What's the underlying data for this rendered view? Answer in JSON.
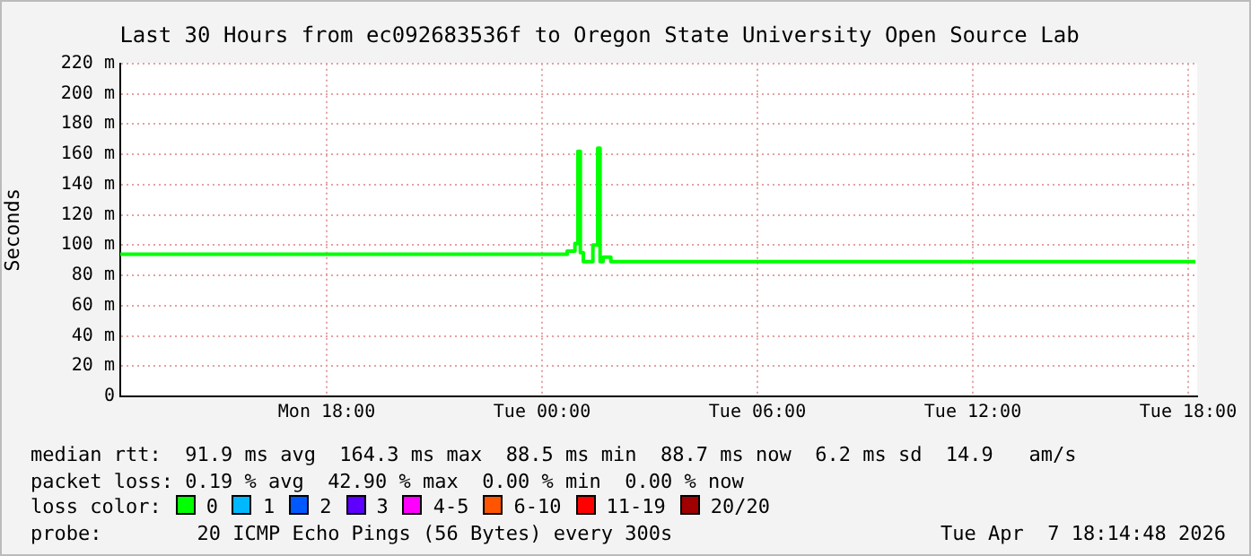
{
  "chart_data": {
    "type": "step",
    "title": "Last 30 Hours from ec092683536f to Oregon State University Open Source Lab",
    "ylabel": "Seconds",
    "x": [
      "2026-04-06T12:15",
      "2026-04-07T00:42",
      "2026-04-07T00:55",
      "2026-04-07T01:00",
      "2026-04-07T01:04",
      "2026-04-07T01:09",
      "2026-04-07T01:25",
      "2026-04-07T01:33",
      "2026-04-07T01:37",
      "2026-04-07T01:42",
      "2026-04-07T01:55",
      "2026-04-07T18:12"
    ],
    "xlim": [
      "2026-04-06T12:15",
      "2026-04-07T18:15"
    ],
    "xticks": [
      {
        "value": "2026-04-06T18:00",
        "label": "Mon 18:00"
      },
      {
        "value": "2026-04-07T00:00",
        "label": "Tue 00:00"
      },
      {
        "value": "2026-04-07T06:00",
        "label": "Tue 06:00"
      },
      {
        "value": "2026-04-07T12:00",
        "label": "Tue 12:00"
      },
      {
        "value": "2026-04-07T18:00",
        "label": "Tue 18:00"
      }
    ],
    "ylim": [
      0,
      220
    ],
    "yticks": [
      0,
      {
        "value": 20,
        "label": "20 m"
      },
      {
        "value": 40,
        "label": "40 m"
      },
      {
        "value": 60,
        "label": "60 m"
      },
      {
        "value": 80,
        "label": "80 m"
      },
      {
        "value": 100,
        "label": "100 m"
      },
      {
        "value": 120,
        "label": "120 m"
      },
      {
        "value": 140,
        "label": "140 m"
      },
      {
        "value": 160,
        "label": "160 m"
      },
      {
        "value": 180,
        "label": "180 m"
      },
      {
        "value": 200,
        "label": "200 m"
      },
      {
        "value": 220,
        "label": "220 m"
      }
    ],
    "series": [
      {
        "name": "0",
        "color": "#00ff00",
        "values": [
          94,
          96,
          101,
          162,
          95,
          89,
          100,
          164,
          89,
          92,
          89,
          89
        ]
      },
      {
        "name": "1",
        "color": "#00b8ff",
        "values": [
          null,
          null,
          null,
          null,
          null,
          null,
          null,
          null,
          null,
          null,
          null,
          null
        ]
      },
      {
        "name": "2",
        "color": "#0059ff",
        "values": [
          null,
          null,
          null,
          null,
          null,
          null,
          null,
          null,
          null,
          null,
          null,
          null
        ]
      },
      {
        "name": "3",
        "color": "#5e00ff",
        "values": [
          null,
          null,
          null,
          null,
          null,
          null,
          null,
          null,
          null,
          null,
          null,
          null
        ]
      },
      {
        "name": "4-5",
        "color": "#ff00ff",
        "values": [
          null,
          null,
          null,
          null,
          null,
          null,
          null,
          null,
          null,
          null,
          null,
          null
        ]
      },
      {
        "name": "6-10",
        "color": "#ff5500",
        "values": [
          null,
          null,
          null,
          null,
          null,
          null,
          null,
          null,
          null,
          null,
          null,
          null
        ]
      },
      {
        "name": "11-19",
        "color": "#ff0000",
        "values": [
          null,
          null,
          null,
          null,
          null,
          null,
          null,
          null,
          null,
          null,
          null,
          null
        ]
      },
      {
        "name": "20/20",
        "color": "#a10000",
        "values": [
          null,
          null,
          null,
          null,
          null,
          null,
          null,
          null,
          null,
          null,
          null,
          null
        ]
      }
    ],
    "legend_title": "loss color:",
    "legend": "bottom",
    "grid": true,
    "marker": "none",
    "line_style": "solid",
    "annotations": [
      "median rtt:  91.9 ms avg  164.3 ms max  88.5 ms min  88.7 ms now  6.2 ms sd  14.9   am/s",
      "packet loss: 0.19 % avg  42.90 % max  0.00 % min  0.00 % now",
      "probe:        20 ICMP Echo Pings (56 Bytes) every 300s",
      "Tue Apr  7 18:14:48 2026"
    ]
  }
}
